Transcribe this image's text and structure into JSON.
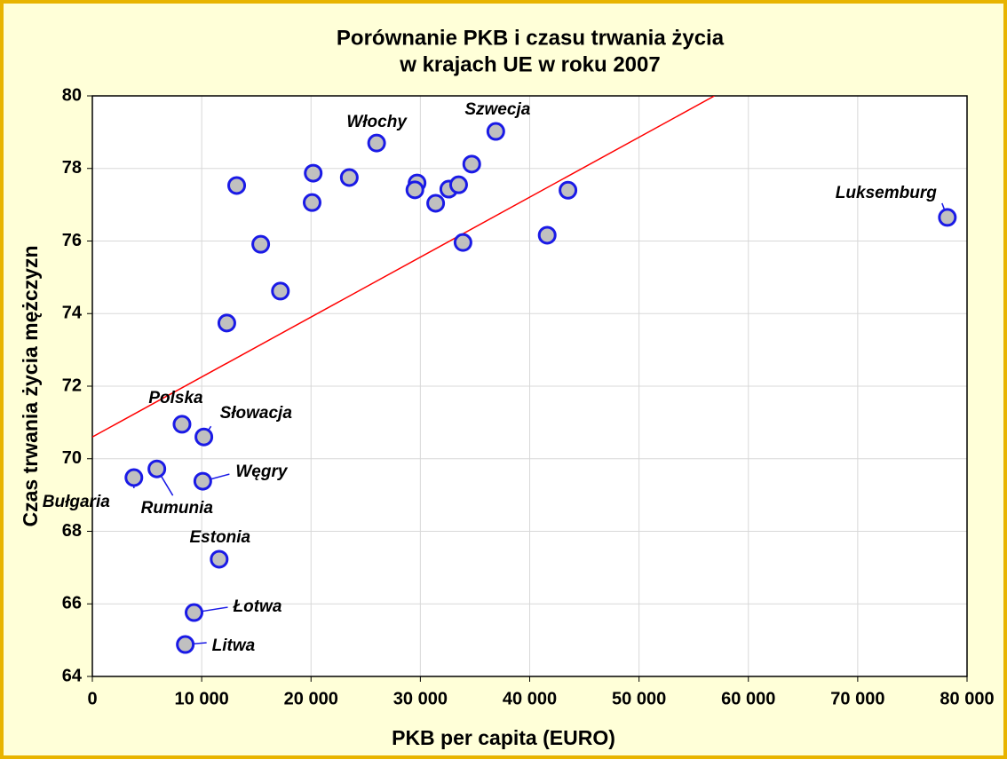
{
  "chart_data": {
    "type": "scatter",
    "title": [
      "Porównanie PKB i czasu trwania życia",
      "w krajach UE w roku 2007"
    ],
    "x_label": "PKB per capita (EURO)",
    "y_label": "Czas trwania życia mężczyzn",
    "x": [
      78200,
      36900,
      26000,
      13200,
      20200,
      20100,
      23500,
      29700,
      29500,
      31400,
      32600,
      33500,
      34700,
      33900,
      43500,
      41600,
      15400,
      17200,
      12300,
      8200,
      10200,
      5900,
      3800,
      10100,
      11600,
      9300,
      8500
    ],
    "values": [
      76.65,
      79.02,
      78.7,
      77.53,
      77.87,
      77.06,
      77.75,
      77.6,
      77.41,
      77.04,
      77.43,
      77.55,
      78.12,
      75.96,
      77.4,
      76.16,
      75.91,
      74.62,
      73.74,
      70.95,
      70.6,
      69.72,
      69.48,
      69.38,
      67.23,
      65.76,
      64.88
    ],
    "labels": [
      "Luksemburg",
      "Szwecja",
      "Włochy",
      null,
      null,
      null,
      null,
      null,
      null,
      null,
      null,
      null,
      null,
      null,
      null,
      null,
      null,
      null,
      null,
      "Polska",
      "Słowacja",
      "Rumunia",
      "Bułgaria",
      "Węgry",
      "Estonia",
      "Łotwa",
      "Litwa"
    ],
    "color": "#c0c0c0",
    "edge_color": "#1a1ae6",
    "trend": {
      "x": [
        0,
        56900
      ],
      "values": [
        70.6,
        80
      ],
      "color": "#ff0000"
    },
    "xlim": [
      0,
      80000
    ],
    "xticks": [
      0,
      {
        "value": 10000,
        "label": "10 000"
      },
      {
        "value": 20000,
        "label": "20 000"
      },
      {
        "value": 30000,
        "label": "30 000"
      },
      {
        "value": 40000,
        "label": "40 000"
      },
      {
        "value": 50000,
        "label": "50 000"
      },
      {
        "value": 60000,
        "label": "60 000"
      },
      {
        "value": 70000,
        "label": "70 000"
      },
      {
        "value": 80000,
        "label": "80 000"
      }
    ],
    "ylim": [
      64,
      80
    ],
    "yticks": [
      64,
      66,
      68,
      70,
      72,
      74,
      76,
      78,
      80
    ],
    "grid": true
  }
}
